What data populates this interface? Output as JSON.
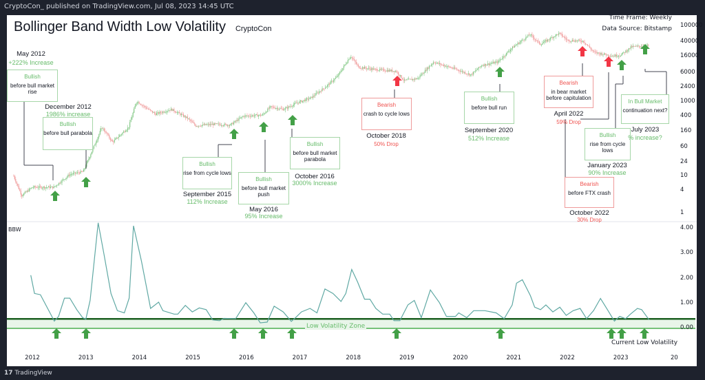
{
  "header": {
    "published": "CryptoCon_ published on TradingView.com, Jul 08, 2023 14:45 UTC",
    "title": "Bollinger Band Width Low Volatility",
    "author": "CryptoCon",
    "timeframe": "Time Frame: Weekly",
    "datasource": "Data Source: Bitstamp"
  },
  "footer": {
    "logo": "TradingView"
  },
  "colors": {
    "up": "#81c784",
    "down": "#ef9a9a",
    "bbw": "#5fa8a3",
    "bull_arrow": "#43a047",
    "bear_arrow": "#f23645",
    "zone_fill": "#e8f5e9",
    "zone_top": "#1b5e20",
    "zone_bottom": "#4caf50"
  },
  "chart_data": [
    {
      "type": "line",
      "scale": "log",
      "ylabel": "",
      "y_ticks": [
        "100000",
        "40000",
        "16000",
        "6000",
        "2400",
        "1000",
        "400",
        "160",
        "60",
        "24",
        "10",
        "4",
        "1"
      ],
      "x_ticks": [
        "2012",
        "2013",
        "2014",
        "2015",
        "2016",
        "2017",
        "2018",
        "2019",
        "2020",
        "2021",
        "2022",
        "2023",
        "20"
      ],
      "price": [
        [
          2011.65,
          10
        ],
        [
          2011.8,
          3
        ],
        [
          2012.0,
          5
        ],
        [
          2012.4,
          5
        ],
        [
          2012.7,
          11
        ],
        [
          2012.95,
          13
        ],
        [
          2013.2,
          90
        ],
        [
          2013.3,
          200
        ],
        [
          2013.5,
          80
        ],
        [
          2013.8,
          200
        ],
        [
          2013.95,
          1000
        ],
        [
          2014.1,
          700
        ],
        [
          2014.3,
          450
        ],
        [
          2014.6,
          600
        ],
        [
          2014.9,
          350
        ],
        [
          2015.05,
          220
        ],
        [
          2015.4,
          240
        ],
        [
          2015.7,
          230
        ],
        [
          2015.95,
          400
        ],
        [
          2016.3,
          420
        ],
        [
          2016.45,
          700
        ],
        [
          2016.7,
          600
        ],
        [
          2016.95,
          900
        ],
        [
          2017.2,
          1200
        ],
        [
          2017.5,
          2500
        ],
        [
          2017.7,
          4500
        ],
        [
          2017.95,
          16000
        ],
        [
          2018.1,
          8000
        ],
        [
          2018.4,
          7000
        ],
        [
          2018.8,
          6300
        ],
        [
          2018.95,
          3500
        ],
        [
          2019.2,
          4000
        ],
        [
          2019.5,
          11000
        ],
        [
          2019.9,
          7200
        ],
        [
          2020.2,
          5000
        ],
        [
          2020.4,
          9000
        ],
        [
          2020.7,
          11000
        ],
        [
          2020.95,
          25000
        ],
        [
          2021.3,
          60000
        ],
        [
          2021.5,
          33000
        ],
        [
          2021.85,
          65000
        ],
        [
          2022.0,
          42000
        ],
        [
          2022.3,
          40000
        ],
        [
          2022.5,
          20000
        ],
        [
          2022.85,
          16000
        ],
        [
          2023.0,
          17000
        ],
        [
          2023.2,
          28000
        ],
        [
          2023.5,
          30000
        ]
      ]
    },
    {
      "type": "line",
      "name": "BBW",
      "y_ticks": [
        "4.00",
        "3.00",
        "2.00",
        "1.00",
        "0.00"
      ],
      "ylim": [
        0,
        4.2
      ],
      "low_volatility_zone": [
        0,
        0.38
      ],
      "values": [
        [
          2011.97,
          2.13
        ],
        [
          2012.04,
          1.4
        ],
        [
          2012.15,
          1.35
        ],
        [
          2012.32,
          0.66
        ],
        [
          2012.41,
          0.29
        ],
        [
          2012.49,
          0.48
        ],
        [
          2012.6,
          1.21
        ],
        [
          2012.7,
          1.21
        ],
        [
          2012.83,
          0.75
        ],
        [
          2012.94,
          0.43
        ],
        [
          2013.0,
          0.37
        ],
        [
          2013.08,
          1.12
        ],
        [
          2013.23,
          4.23
        ],
        [
          2013.34,
          2.96
        ],
        [
          2013.47,
          1.4
        ],
        [
          2013.59,
          0.71
        ],
        [
          2013.72,
          0.62
        ],
        [
          2013.81,
          1.21
        ],
        [
          2013.89,
          4.11
        ],
        [
          2014.04,
          2.69
        ],
        [
          2014.14,
          1.58
        ],
        [
          2014.21,
          0.8
        ],
        [
          2014.36,
          1.05
        ],
        [
          2014.44,
          0.71
        ],
        [
          2014.65,
          0.57
        ],
        [
          2014.72,
          0.57
        ],
        [
          2014.86,
          0.92
        ],
        [
          2014.99,
          0.66
        ],
        [
          2015.12,
          0.82
        ],
        [
          2015.25,
          0.75
        ],
        [
          2015.37,
          0.34
        ],
        [
          2015.5,
          0.31
        ],
        [
          2015.58,
          0.4
        ],
        [
          2015.8,
          0.39
        ],
        [
          2015.99,
          1.03
        ],
        [
          2016.14,
          0.62
        ],
        [
          2016.26,
          0.22
        ],
        [
          2016.39,
          0.25
        ],
        [
          2016.52,
          0.89
        ],
        [
          2016.69,
          0.66
        ],
        [
          2016.84,
          0.28
        ],
        [
          2016.92,
          0.43
        ],
        [
          2017.03,
          0.66
        ],
        [
          2017.19,
          0.8
        ],
        [
          2017.32,
          0.62
        ],
        [
          2017.47,
          1.58
        ],
        [
          2017.62,
          1.4
        ],
        [
          2017.77,
          1.08
        ],
        [
          2017.86,
          1.4
        ],
        [
          2017.97,
          2.36
        ],
        [
          2018.08,
          1.86
        ],
        [
          2018.21,
          1.17
        ],
        [
          2018.31,
          1.17
        ],
        [
          2018.42,
          0.8
        ],
        [
          2018.55,
          0.57
        ],
        [
          2018.68,
          0.57
        ],
        [
          2018.76,
          0.31
        ],
        [
          2018.87,
          0.31
        ],
        [
          2019.02,
          0.94
        ],
        [
          2019.14,
          1.12
        ],
        [
          2019.27,
          0.43
        ],
        [
          2019.44,
          1.54
        ],
        [
          2019.61,
          1.03
        ],
        [
          2019.74,
          0.48
        ],
        [
          2019.91,
          0.48
        ],
        [
          2019.97,
          0.62
        ],
        [
          2020.12,
          0.43
        ],
        [
          2020.25,
          0.71
        ],
        [
          2020.46,
          0.71
        ],
        [
          2020.67,
          0.62
        ],
        [
          2020.82,
          0.39
        ],
        [
          2020.97,
          0.94
        ],
        [
          2021.05,
          1.81
        ],
        [
          2021.16,
          1.95
        ],
        [
          2021.31,
          1.31
        ],
        [
          2021.39,
          0.85
        ],
        [
          2021.5,
          0.75
        ],
        [
          2021.6,
          0.94
        ],
        [
          2021.73,
          0.66
        ],
        [
          2021.86,
          0.85
        ],
        [
          2021.98,
          0.52
        ],
        [
          2022.11,
          0.71
        ],
        [
          2022.24,
          0.8
        ],
        [
          2022.36,
          0.39
        ],
        [
          2022.49,
          0.71
        ],
        [
          2022.62,
          1.2
        ],
        [
          2022.75,
          0.75
        ],
        [
          2022.88,
          0.29
        ],
        [
          2022.98,
          0.48
        ],
        [
          2023.09,
          0.39
        ],
        [
          2023.18,
          0.57
        ],
        [
          2023.31,
          0.8
        ],
        [
          2023.39,
          0.75
        ],
        [
          2023.53,
          0.34
        ]
      ]
    }
  ],
  "labels": {
    "bbw": "BBW",
    "zone": "Low Volatility Zone",
    "current": "Current Low Volatility"
  },
  "annotations": [
    {
      "head": "Bullish",
      "body": "before bull market rise",
      "date": "May 2012",
      "pct": "+222% Increase"
    },
    {
      "head": "Bullish",
      "body": "before bull parabola",
      "date": "December 2012",
      "pct": "1986% increase"
    },
    {
      "head": "Bullish",
      "body": "rise from cycle lows",
      "date": "September 2015",
      "pct": "112% Increase"
    },
    {
      "head": "Bullish",
      "body": "before bull market push",
      "date": "May 2016",
      "pct": "95% Increase"
    },
    {
      "head": "Bullish",
      "body": "before bull market parabola",
      "date": "October 2016",
      "pct": "3000% Increase"
    },
    {
      "head": "Bearish",
      "body": "crash to cycle lows",
      "date": "October 2018",
      "pct": "50% Drop"
    },
    {
      "head": "Bullish",
      "body": "before bull run",
      "date": "September 2020",
      "pct": "512% Increase"
    },
    {
      "head": "Bearish",
      "body": "in bear market before capitulation",
      "date": "April 2022",
      "pct": "59% Drop"
    },
    {
      "head": "Bearish",
      "body": "before FTX crash",
      "date": "October 2022",
      "pct": "30% Drop"
    },
    {
      "head": "Bullish",
      "body": "rise from cycle lows",
      "date": "January 2023",
      "pct": "90% Increase"
    },
    {
      "head": "In Bull Market",
      "body": "continuation next?",
      "date": "July 2023",
      "pct": "% increase?"
    }
  ]
}
